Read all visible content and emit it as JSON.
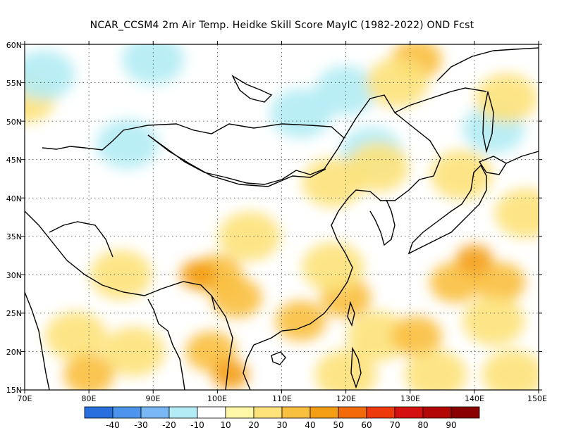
{
  "title": "NCAR_CCSM4  2m Air Temp. Heidke Skill Score MayIC (1982-2022) OND Fcst",
  "map": {
    "lon_range": [
      70,
      150
    ],
    "lat_range": [
      15,
      60
    ],
    "grid": "dotted",
    "lon_ticks": [
      "70E",
      "80E",
      "90E",
      "100E",
      "110E",
      "120E",
      "130E",
      "140E",
      "150E"
    ],
    "lat_ticks": [
      "15N",
      "20N",
      "25N",
      "30N",
      "35N",
      "40N",
      "45N",
      "50N",
      "55N",
      "60N"
    ]
  },
  "colorbar": {
    "colors": [
      "#2a6fe0",
      "#4c94ee",
      "#7ab8f5",
      "#b3ecf4",
      "#ffffff",
      "#fff7a8",
      "#fde27a",
      "#f9bf3f",
      "#f49e14",
      "#f26a0a",
      "#ee3a0a",
      "#d41010",
      "#b30707",
      "#8a0000"
    ],
    "labels": [
      "-40",
      "-30",
      "-20",
      "-10",
      "10",
      "20",
      "30",
      "40",
      "50",
      "60",
      "70",
      "80",
      "90"
    ]
  },
  "fields": [
    {
      "lon": 70,
      "lat": 53,
      "value": 20
    },
    {
      "lon": 73,
      "lat": 56,
      "value": -10
    },
    {
      "lon": 90,
      "lat": 58,
      "value": -10
    },
    {
      "lon": 86,
      "lat": 47,
      "value": -10
    },
    {
      "lon": 120,
      "lat": 54,
      "value": -10
    },
    {
      "lon": 113,
      "lat": 51,
      "value": -10
    },
    {
      "lon": 124,
      "lat": 46,
      "value": -10
    },
    {
      "lon": 143,
      "lat": 49,
      "value": -10
    },
    {
      "lon": 131,
      "lat": 58,
      "value": 30
    },
    {
      "lon": 128,
      "lat": 55,
      "value": 20
    },
    {
      "lon": 145,
      "lat": 53,
      "value": 20
    },
    {
      "lon": 138,
      "lat": 43,
      "value": 20
    },
    {
      "lon": 125,
      "lat": 44,
      "value": 20
    },
    {
      "lon": 118,
      "lat": 42,
      "value": 20
    },
    {
      "lon": 105,
      "lat": 35,
      "value": 20
    },
    {
      "lon": 100,
      "lat": 30,
      "value": 30
    },
    {
      "lon": 97,
      "lat": 30,
      "value": 40
    },
    {
      "lon": 103,
      "lat": 27,
      "value": 30
    },
    {
      "lon": 99,
      "lat": 20,
      "value": 30
    },
    {
      "lon": 102,
      "lat": 17,
      "value": 40
    },
    {
      "lon": 85,
      "lat": 30,
      "value": 20
    },
    {
      "lon": 78,
      "lat": 22,
      "value": 20
    },
    {
      "lon": 87,
      "lat": 20,
      "value": 20
    },
    {
      "lon": 80,
      "lat": 17,
      "value": 30
    },
    {
      "lon": 120,
      "lat": 27,
      "value": 30
    },
    {
      "lon": 113,
      "lat": 24,
      "value": 30
    },
    {
      "lon": 118,
      "lat": 31,
      "value": 20
    },
    {
      "lon": 125,
      "lat": 22,
      "value": 20
    },
    {
      "lon": 131,
      "lat": 22,
      "value": 30
    },
    {
      "lon": 137,
      "lat": 29,
      "value": 30
    },
    {
      "lon": 144,
      "lat": 29,
      "value": 30
    },
    {
      "lon": 140,
      "lat": 32,
      "value": 40
    },
    {
      "lon": 143,
      "lat": 24,
      "value": 20
    },
    {
      "lon": 148,
      "lat": 38,
      "value": 20
    },
    {
      "lon": 120,
      "lat": 17,
      "value": 20
    },
    {
      "lon": 134,
      "lat": 17,
      "value": 20
    },
    {
      "lon": 146,
      "lat": 17,
      "value": 20
    }
  ]
}
